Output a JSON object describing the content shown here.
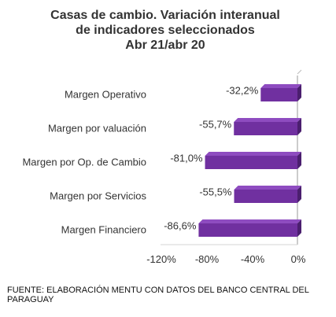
{
  "chart_data": {
    "type": "bar",
    "orientation": "horizontal",
    "title": [
      "Casas de cambio. Variación interanual",
      "de indicadores seleccionados",
      "Abr 21/abr 20"
    ],
    "categories": [
      "Margen Operativo",
      "Margen por valuación",
      "Margen por Op. de Cambio",
      "Margen por Servicios",
      "Margen Financiero"
    ],
    "values": [
      -32.2,
      -55.7,
      -81.0,
      -55.5,
      -86.6
    ],
    "data_labels": [
      "-32,2%",
      "-55,7%",
      "-81,0%",
      "-55,5%",
      "-86,6%"
    ],
    "xlim": [
      -120,
      0
    ],
    "x_ticks": [
      -120,
      -80,
      -40,
      0
    ],
    "x_tick_labels": [
      "-120%",
      "-80%",
      "-40%",
      "0%"
    ],
    "grid": false,
    "legend": "none",
    "bar_color": "#7030A0",
    "bar_color_dark": "#4B1F6F",
    "bar_color_light": "#8E4CC0"
  },
  "source": "FUENTE: ELABORACIÓN MENTU CON DATOS DEL BANCO CENTRAL DEL PARAGUAY"
}
